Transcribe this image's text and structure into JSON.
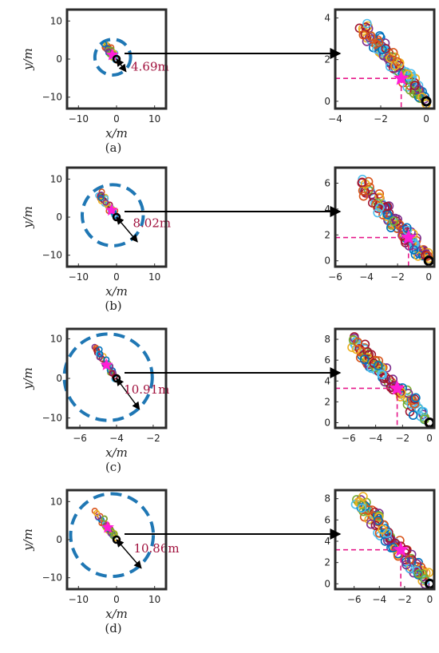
{
  "chart_data": [
    {
      "caption": "(a)",
      "left": {
        "type": "scatter",
        "xlabel": "x/m",
        "ylabel": "y/m",
        "xlim": [
          -13,
          13
        ],
        "ylim": [
          -13,
          13
        ],
        "xticks": [
          -10,
          0,
          10
        ],
        "xtick_labels": [
          "−10",
          "0",
          "10"
        ],
        "yticks": [
          10,
          0,
          -10
        ],
        "ytick_labels": [
          "10",
          "0",
          "−10"
        ],
        "circle_center": [
          -1,
          0.5
        ],
        "circle_radius": 4.69,
        "trajectory_start": [
          -2.8,
          3.6
        ],
        "trajectory_end": [
          0,
          0
        ],
        "star": [
          -1.1,
          1.1
        ],
        "origin": [
          0,
          0
        ],
        "arrow_tip": [
          2.5,
          -3.3
        ],
        "annotation": "4.69m",
        "annotation_pos": [
          3.8,
          -3.0
        ]
      },
      "right": {
        "type": "scatter",
        "xlim": [
          -4,
          0.35
        ],
        "ylim": [
          -0.35,
          4.4
        ],
        "xticks": [
          -4,
          -2,
          0
        ],
        "xtick_labels": [
          "−4",
          "−2",
          "0"
        ],
        "yticks": [
          0,
          2,
          4
        ],
        "ytick_labels": [
          "0",
          "2",
          "4"
        ],
        "trajectory_start": [
          -2.8,
          3.6
        ],
        "trajectory_end": [
          0,
          0
        ],
        "star": [
          -1.1,
          1.1
        ],
        "goal": [
          0,
          0
        ],
        "dash_y": 1.1,
        "dash_x": -1.1
      }
    },
    {
      "caption": "(b)",
      "left": {
        "type": "scatter",
        "xlabel": "x/m",
        "ylabel": "y/m",
        "xlim": [
          -13,
          13
        ],
        "ylim": [
          -13,
          13
        ],
        "xticks": [
          -10,
          0,
          10
        ],
        "xtick_labels": [
          "−10",
          "0",
          "10"
        ],
        "yticks": [
          10,
          0,
          -10
        ],
        "ytick_labels": [
          "10",
          "0",
          "−10"
        ],
        "circle_center": [
          -1,
          0.5
        ],
        "circle_radius": 8.02,
        "trajectory_start": [
          -4.6,
          6.4
        ],
        "trajectory_end": [
          0,
          0
        ],
        "star": [
          -1.3,
          1.8
        ],
        "origin": [
          0,
          0
        ],
        "arrow_tip": [
          5.5,
          -6.5
        ],
        "annotation": "8.02m",
        "annotation_pos": [
          4.3,
          -2.6
        ]
      },
      "right": {
        "type": "scatter",
        "xlim": [
          -6,
          0.35
        ],
        "ylim": [
          -0.45,
          7.2
        ],
        "xticks": [
          -6,
          -4,
          -2,
          0
        ],
        "xtick_labels": [
          "−6",
          "−4",
          "−2",
          "0"
        ],
        "yticks": [
          0,
          2,
          4,
          6
        ],
        "ytick_labels": [
          "0",
          "2",
          "4",
          "6"
        ],
        "trajectory_start": [
          -4.6,
          6.4
        ],
        "trajectory_end": [
          0,
          0
        ],
        "star": [
          -1.3,
          1.8
        ],
        "goal": [
          0,
          0
        ],
        "dash_y": 1.8,
        "dash_x": -1.3
      }
    },
    {
      "caption": "(c)",
      "left": {
        "type": "scatter",
        "xlabel": "x/m",
        "ylabel": "y/m",
        "xlim": [
          -6.7,
          -1.3
        ],
        "ylim": [
          -12.5,
          12.5
        ],
        "xticks": [
          -6,
          -4,
          -2
        ],
        "xtick_labels": [
          "−6",
          "−4",
          "−2"
        ],
        "yticks": [
          10,
          0,
          -10
        ],
        "ytick_labels": [
          "10",
          "0",
          "−10"
        ],
        "circle_center": [
          -4.45,
          0.3
        ],
        "circle_radius_x": 2.4,
        "circle_radius_y": 10.91,
        "trajectory_start": [
          -5.2,
          7.8
        ],
        "trajectory_end": [
          -4,
          0
        ],
        "star": [
          -4.55,
          3.4
        ],
        "origin": [
          -4,
          0
        ],
        "arrow_tip": [
          -2.75,
          -7.8
        ],
        "annotation": "10.91m",
        "annotation_pos": [
          -3.6,
          -3.8
        ]
      },
      "right": {
        "type": "scatter",
        "xlim": [
          -7,
          0.35
        ],
        "ylim": [
          -0.5,
          9.0
        ],
        "xticks": [
          -6,
          -4,
          -2,
          0
        ],
        "xtick_labels": [
          "−6",
          "−4",
          "−2",
          "0"
        ],
        "yticks": [
          0,
          2,
          4,
          6,
          8
        ],
        "ytick_labels": [
          "0",
          "2",
          "4",
          "6",
          "8"
        ],
        "trajectory_start": [
          -5.8,
          8.0
        ],
        "trajectory_end": [
          0,
          0
        ],
        "star": [
          -2.4,
          3.3
        ],
        "goal": [
          0,
          0
        ],
        "dash_y": 3.3,
        "dash_x": -2.4
      }
    },
    {
      "caption": "(d)",
      "left": {
        "type": "scatter",
        "xlabel": "x/m",
        "ylabel": "y/m",
        "xlim": [
          -13,
          13
        ],
        "ylim": [
          -13,
          13
        ],
        "xticks": [
          -10,
          0,
          10
        ],
        "xtick_labels": [
          "−10",
          "0",
          "10"
        ],
        "yticks": [
          10,
          0,
          -10
        ],
        "ytick_labels": [
          "10",
          "0",
          "−10"
        ],
        "circle_center": [
          -1.2,
          1.2
        ],
        "circle_radius": 10.86,
        "trajectory_start": [
          -5.8,
          8.0
        ],
        "trajectory_end": [
          0,
          0
        ],
        "star": [
          -2.3,
          3.2
        ],
        "origin": [
          0,
          0
        ],
        "arrow_tip": [
          6.5,
          -7.5
        ],
        "annotation": "10.86m",
        "annotation_pos": [
          4.5,
          -3.4
        ]
      },
      "right": {
        "type": "scatter",
        "xlim": [
          -7.5,
          0.35
        ],
        "ylim": [
          -0.5,
          8.8
        ],
        "xticks": [
          -6,
          -4,
          -2,
          0
        ],
        "xtick_labels": [
          "−6",
          "−4",
          "−2",
          "0"
        ],
        "yticks": [
          0,
          2,
          4,
          6,
          8
        ],
        "ytick_labels": [
          "0",
          "2",
          "4",
          "6",
          "8"
        ],
        "trajectory_start": [
          -5.8,
          8.0
        ],
        "trajectory_end": [
          0,
          0
        ],
        "star": [
          -2.3,
          3.2
        ],
        "goal": [
          0,
          0
        ],
        "dash_y": 3.2,
        "dash_x": -2.3
      }
    }
  ],
  "colors": {
    "axis_frame": "#2b2b2b",
    "dashed_circle": "#1f77b4",
    "star": "#ff1fd6",
    "dash_line": "#e6198a",
    "annotation": "#a0103c",
    "arrow": "#000000",
    "origin_marker": "#000000",
    "scatter_palette": [
      "#0072BD",
      "#D95319",
      "#EDB120",
      "#7E2F8E",
      "#77AC30",
      "#4DBEEE",
      "#A2142F"
    ]
  }
}
